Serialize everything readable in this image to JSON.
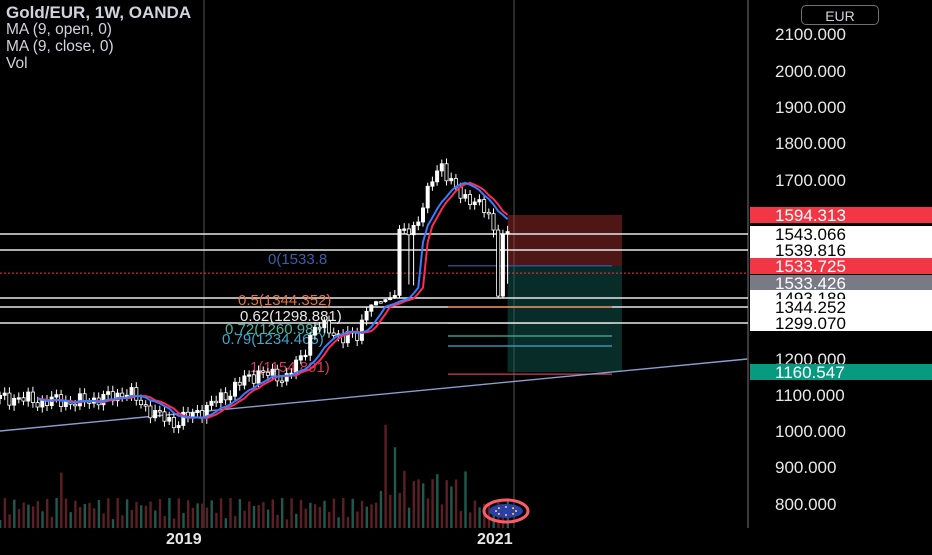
{
  "legend": {
    "title": "Gold/EUR, 1W, OANDA",
    "ma_open": "MA (9, open, 0)",
    "ma_close": "MA (9, close, 0)",
    "vol": "Vol"
  },
  "currency_button": "EUR",
  "colors": {
    "background": "#000000",
    "price_white": "#ffffff",
    "ma_open": "#ff2a55",
    "ma_close": "#3b7bff",
    "trendline": "#8c9ccf",
    "stop_zone": "#b03030",
    "target_zone": "#0f5a52",
    "tag_red": "#f23645",
    "tag_green": "#089981",
    "tag_gray": "#787b86"
  },
  "chart_data": {
    "type": "candlestick",
    "symbol": "Gold/EUR",
    "interval": "1W",
    "source": "OANDA",
    "y_ticks": [
      800,
      900,
      1000,
      1100,
      1200,
      1700,
      1800,
      1900,
      2000,
      2100
    ],
    "y_tick_labels": [
      "800.000",
      "900.000",
      "1000.000",
      "1100.000",
      "1200.000",
      "1700.000",
      "1800.000",
      "1900.000",
      "2000.000",
      "2100.000"
    ],
    "x_tick_labels": [
      "2019",
      "2021"
    ],
    "price_path": [
      {
        "t": 0,
        "p": 1090
      },
      {
        "t": 4,
        "p": 1092
      },
      {
        "t": 8,
        "p": 1080
      },
      {
        "t": 12,
        "p": 1085
      },
      {
        "t": 16,
        "p": 1078
      },
      {
        "t": 20,
        "p": 1088
      },
      {
        "t": 24,
        "p": 1095
      },
      {
        "t": 27,
        "p": 1110
      },
      {
        "t": 30,
        "p": 1075
      },
      {
        "t": 34,
        "p": 1040
      },
      {
        "t": 37,
        "p": 1022
      },
      {
        "t": 40,
        "p": 1040
      },
      {
        "t": 44,
        "p": 1065
      },
      {
        "t": 48,
        "p": 1100
      },
      {
        "t": 52,
        "p": 1140
      },
      {
        "t": 55,
        "p": 1160
      },
      {
        "t": 58,
        "p": 1150
      },
      {
        "t": 61,
        "p": 1148
      },
      {
        "t": 64,
        "p": 1200
      },
      {
        "t": 67,
        "p": 1290
      },
      {
        "t": 70,
        "p": 1280
      },
      {
        "t": 73,
        "p": 1255
      },
      {
        "t": 76,
        "p": 1265
      },
      {
        "t": 79,
        "p": 1380
      },
      {
        "t": 82,
        "p": 1470
      },
      {
        "t": 85,
        "p": 1540
      },
      {
        "t": 88,
        "p": 1560
      },
      {
        "t": 90,
        "p": 1620
      },
      {
        "t": 92,
        "p": 1700
      },
      {
        "t": 94,
        "p": 1745
      },
      {
        "t": 96,
        "p": 1690
      },
      {
        "t": 98,
        "p": 1650
      },
      {
        "t": 101,
        "p": 1640
      },
      {
        "t": 104,
        "p": 1590
      },
      {
        "t": 106,
        "p": 1520
      },
      {
        "t": 108,
        "p": 1545
      }
    ],
    "moving_averages": [
      {
        "name": "MA (9, open, 0)",
        "color": "#ff2a55"
      },
      {
        "name": "MA (9, close, 0)",
        "color": "#3b7bff"
      }
    ],
    "horizontal_lines": [
      1543.066,
      1539.816,
      1493.189,
      1344.252,
      1299.07
    ],
    "fibonacci": [
      {
        "label": "0(1533.8",
        "level": 1533.8,
        "color": "#3a5fa8"
      },
      {
        "label": "0.5(1344.352)",
        "level": 1344.352,
        "color": "#e8703a"
      },
      {
        "label": "0.62(1298.881)",
        "level": 1298.881,
        "color": "#e8e8e8"
      },
      {
        "label": "0.72(1260.989)",
        "level": 1260.989,
        "color": "#4ab3a0"
      },
      {
        "label": "0.79(1234.465)",
        "level": 1234.465,
        "color": "#3fa7d0"
      },
      {
        "label": "1(1154.891)",
        "level": 1154.891,
        "color": "#d43a5a"
      }
    ],
    "position_tool": {
      "entry": 1533.725,
      "stop": 1594.313,
      "target": 1160.547
    },
    "price_tags": [
      {
        "value": 1594.313,
        "label": "1594.313",
        "style": "red"
      },
      {
        "value": 1543.066,
        "label": "1543.066",
        "style": "white"
      },
      {
        "value": 1539.816,
        "label": "1539.816",
        "style": "white"
      },
      {
        "value": 1533.725,
        "label": "1533.725",
        "style": "red"
      },
      {
        "value": 1533.426,
        "label": "1533.426",
        "style": "gray"
      },
      {
        "value": 1493.189,
        "label": "1493.189",
        "style": "white"
      },
      {
        "value": 1344.252,
        "label": "1344.252",
        "style": "white"
      },
      {
        "value": 1299.07,
        "label": "1299.070",
        "style": "white"
      },
      {
        "value": 1160.547,
        "label": "1160.547",
        "style": "green"
      }
    ],
    "trendline": {
      "from": {
        "t": 0,
        "p": 1000
      },
      "to": {
        "t": 200,
        "p": 1200
      }
    }
  }
}
